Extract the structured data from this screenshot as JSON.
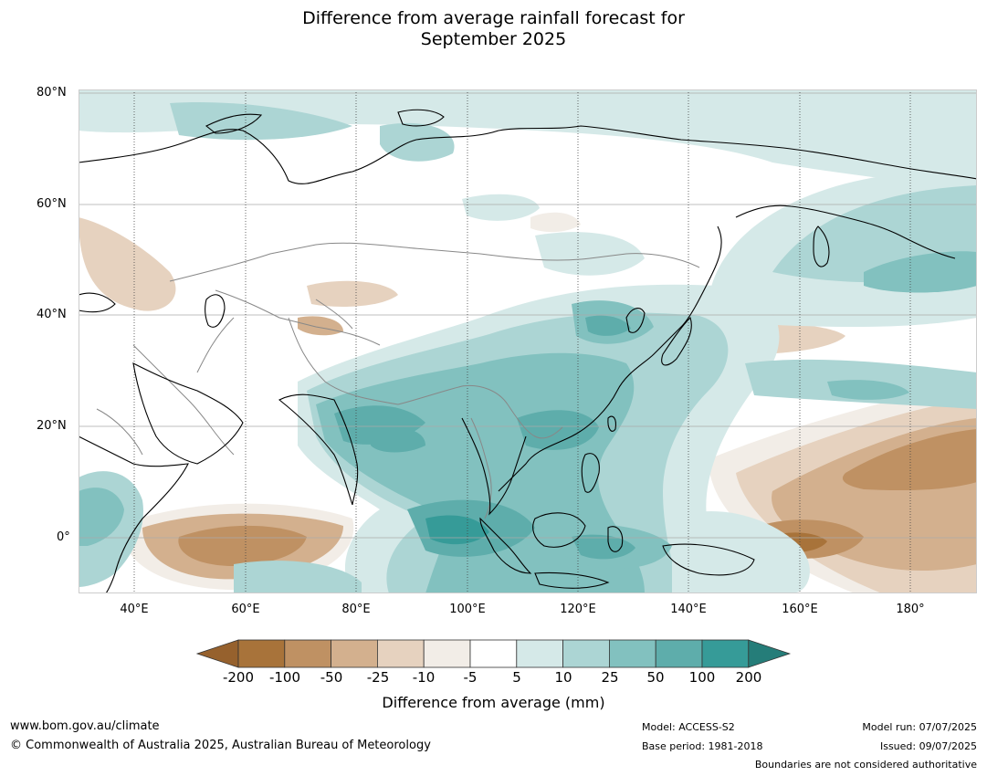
{
  "title_line1": "Difference from average rainfall forecast for",
  "title_line2": "September 2025",
  "latitude_labels": [
    "80°N",
    "60°N",
    "40°N",
    "20°N",
    "0°"
  ],
  "longitude_labels": [
    "40°E",
    "60°E",
    "80°E",
    "100°E",
    "120°E",
    "140°E",
    "160°E",
    "180°"
  ],
  "map": {
    "lon_range": [
      30,
      192
    ],
    "lat_range": [
      -10,
      81
    ],
    "land_outline_color": "#000000",
    "border_color": "#888888"
  },
  "legend": {
    "title": "Difference from average (mm)",
    "tick_labels": [
      "-200",
      "-100",
      "-50",
      "-25",
      "-10",
      "-5",
      "5",
      "10",
      "25",
      "50",
      "100",
      "200"
    ],
    "colors": [
      "#96612d",
      "#a8733a",
      "#bf9163",
      "#d3b08e",
      "#e6d2bf",
      "#f2ede7",
      "#ffffff",
      "#d5e9e8",
      "#acd5d4",
      "#82c1bf",
      "#5eadab",
      "#369b98",
      "#257d79"
    ]
  },
  "footer": {
    "website": "www.bom.gov.au/climate",
    "copyright": "© Commonwealth of Australia 2025, Australian Bureau of Meteorology",
    "model": "Model: ACCESS-S2",
    "base_period": "Base period: 1981-2018",
    "model_run": "Model run: 07/07/2025",
    "issued": "Issued: 09/07/2025",
    "disclaimer": "Boundaries are not considered authoritative"
  }
}
